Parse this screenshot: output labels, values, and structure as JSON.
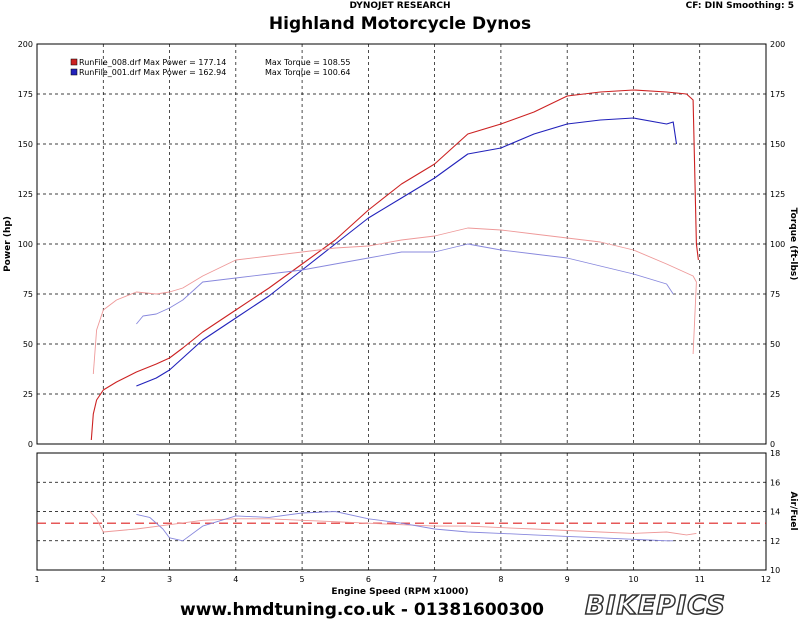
{
  "header": {
    "subtitle": "DYNOJET RESEARCH",
    "cf_info": "CF: DIN  Smoothing: 5",
    "title": "Highland Motorcycle Dynos"
  },
  "footer": {
    "text": "www.hmdtuning.co.uk - 01381600300",
    "brand": "BIKEPICS"
  },
  "colors": {
    "red": "#cc2222",
    "blue": "#2222bb",
    "lightred": "#ee9999",
    "lightblue": "#8888dd"
  },
  "chart_data": [
    {
      "type": "line",
      "title": "Highland Motorcycle Dynos",
      "xlabel": "Engine Speed (RPM x1000)",
      "ylabel": "Power (hp)",
      "ylabel_right": "Torque (ft-lbs)",
      "xlim": [
        1,
        12
      ],
      "ylim": [
        0,
        200
      ],
      "x_ticks": [
        1,
        2,
        3,
        4,
        5,
        6,
        7,
        8,
        9,
        10,
        11,
        12
      ],
      "y_ticks": [
        0,
        25,
        50,
        75,
        100,
        125,
        150,
        175,
        200
      ],
      "grid": true,
      "legend": [
        {
          "text": "RunFile_008.drf Max Power = 177.14",
          "torque": "Max Torque = 108.55",
          "color": "#cc2222"
        },
        {
          "text": "RunFile_001.drf Max Power = 162.94",
          "torque": "Max Torque = 100.64",
          "color": "#2222bb"
        }
      ],
      "series": [
        {
          "role": "power-008",
          "color": "#cc2222",
          "x": [
            1.82,
            1.85,
            1.9,
            2.0,
            2.2,
            2.5,
            2.8,
            3.0,
            3.2,
            3.5,
            4.0,
            4.5,
            5.0,
            5.5,
            6.0,
            6.5,
            7.0,
            7.5,
            8.0,
            8.5,
            9.0,
            9.5,
            10.0,
            10.5,
            10.8,
            10.9,
            10.95,
            10.98
          ],
          "y": [
            2,
            15,
            22,
            27,
            31,
            36,
            40,
            43,
            48,
            56,
            67,
            78,
            90,
            102,
            117,
            130,
            140,
            155,
            160,
            166,
            174,
            176,
            177,
            176,
            175,
            172,
            100,
            92
          ]
        },
        {
          "role": "power-001",
          "color": "#2222bb",
          "x": [
            2.5,
            2.8,
            3.0,
            3.2,
            3.5,
            4.0,
            4.5,
            5.0,
            5.5,
            6.0,
            6.5,
            7.0,
            7.5,
            8.0,
            8.5,
            9.0,
            9.5,
            10.0,
            10.5,
            10.6,
            10.65
          ],
          "y": [
            29,
            33,
            37,
            43,
            52,
            63,
            74,
            87,
            100,
            113,
            123,
            133,
            145,
            148,
            155,
            160,
            162,
            163,
            160,
            161,
            150
          ]
        },
        {
          "role": "torque-008",
          "color": "#ee9999",
          "x": [
            1.85,
            1.9,
            2.0,
            2.2,
            2.5,
            2.8,
            3.0,
            3.2,
            3.5,
            4.0,
            4.5,
            5.0,
            5.5,
            6.0,
            6.5,
            7.0,
            7.5,
            8.0,
            8.5,
            9.0,
            9.5,
            10.0,
            10.5,
            10.9,
            10.95,
            10.9
          ],
          "y": [
            35,
            57,
            67,
            72,
            76,
            75,
            76,
            78,
            84,
            92,
            94,
            96,
            98,
            99,
            102,
            104,
            108,
            107,
            105,
            103,
            101,
            97,
            90,
            84,
            81,
            45
          ]
        },
        {
          "role": "torque-001",
          "color": "#8888dd",
          "x": [
            2.5,
            2.6,
            2.8,
            3.0,
            3.2,
            3.5,
            4.0,
            4.5,
            5.0,
            5.5,
            6.0,
            6.5,
            7.0,
            7.5,
            8.0,
            8.5,
            9.0,
            9.5,
            10.0,
            10.5,
            10.6
          ],
          "y": [
            60,
            64,
            65,
            68,
            72,
            81,
            83,
            85,
            87,
            90,
            93,
            96,
            96,
            100,
            97,
            95,
            93,
            89,
            85,
            80,
            75
          ]
        }
      ]
    },
    {
      "type": "line",
      "ylabel": "Air/Fuel",
      "xlim": [
        1,
        12
      ],
      "ylim": [
        10,
        18
      ],
      "y_ticks": [
        10,
        12,
        14,
        16,
        18
      ],
      "reference_line": 13.2,
      "series": [
        {
          "role": "af-008",
          "color": "#ee9999",
          "x": [
            1.8,
            1.9,
            2.0,
            2.5,
            3.0,
            3.5,
            4.0,
            4.5,
            5.0,
            5.5,
            6.0,
            6.5,
            7.0,
            7.5,
            8.0,
            8.5,
            9.0,
            9.5,
            10.0,
            10.5,
            10.8,
            10.95
          ],
          "y": [
            14.0,
            13.5,
            12.6,
            12.8,
            13.1,
            13.4,
            13.5,
            13.5,
            13.4,
            13.3,
            13.2,
            13.1,
            13.0,
            13.0,
            12.9,
            12.8,
            12.7,
            12.6,
            12.5,
            12.6,
            12.4,
            12.5
          ]
        },
        {
          "role": "af-001",
          "color": "#8888dd",
          "x": [
            2.5,
            2.7,
            2.9,
            3.0,
            3.2,
            3.5,
            4.0,
            4.5,
            5.0,
            5.5,
            6.0,
            6.5,
            7.0,
            7.5,
            8.0,
            8.5,
            9.0,
            9.5,
            10.0,
            10.5,
            10.6
          ],
          "y": [
            13.8,
            13.6,
            12.8,
            12.2,
            12.0,
            13.0,
            13.7,
            13.6,
            13.9,
            14.0,
            13.5,
            13.2,
            12.8,
            12.6,
            12.5,
            12.4,
            12.3,
            12.2,
            12.1,
            12.0,
            12.0
          ]
        }
      ]
    }
  ]
}
